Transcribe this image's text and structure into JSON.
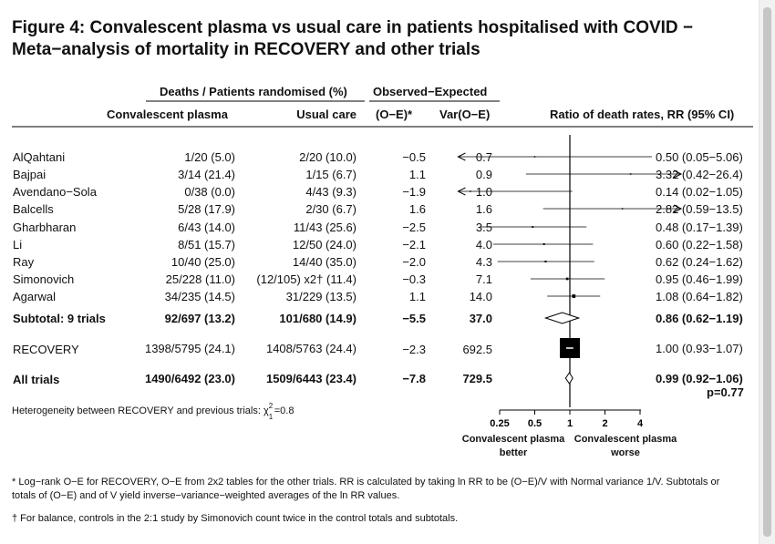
{
  "title_line1": "Figure 4: Convalescent plasma vs usual care in patients hospitalised with COVID −",
  "title_line2": "Meta−analysis of mortality in RECOVERY and other trials",
  "headers": {
    "deaths_group": "Deaths / Patients randomised (%)",
    "oe_group": "Observed−Expected",
    "cp": "Convalescent plasma",
    "uc": "Usual care",
    "oe": "(O−E)*",
    "var": "Var(O−E)",
    "rr": "Ratio of death rates, RR (95% CI)"
  },
  "rows": [
    {
      "name": "AlQahtani",
      "cp": "1/20 (5.0)",
      "uc": "2/20 (10.0)",
      "oe": "−0.5",
      "var": "0.7",
      "rr_text": "0.50 (0.05−5.06)"
    },
    {
      "name": "Bajpai",
      "cp": "3/14 (21.4)",
      "uc": "1/15 (6.7)",
      "oe": "1.1",
      "var": "0.9",
      "rr_text": "3.32 (0.42−26.4)"
    },
    {
      "name": "Avendano−Sola",
      "cp": "0/38 (0.0)",
      "uc": "4/43 (9.3)",
      "oe": "−1.9",
      "var": "1.0",
      "rr_text": "0.14 (0.02−1.05)"
    },
    {
      "name": "Balcells",
      "cp": "5/28 (17.9)",
      "uc": "2/30 (6.7)",
      "oe": "1.6",
      "var": "1.6",
      "rr_text": "2.82 (0.59−13.5)"
    },
    {
      "name": "Gharbharan",
      "cp": "6/43 (14.0)",
      "uc": "11/43 (25.6)",
      "oe": "−2.5",
      "var": "3.5",
      "rr_text": "0.48 (0.17−1.39)"
    },
    {
      "name": "Li",
      "cp": "8/51 (15.7)",
      "uc": "12/50 (24.0)",
      "oe": "−2.1",
      "var": "4.0",
      "rr_text": "0.60 (0.22−1.58)"
    },
    {
      "name": "Ray",
      "cp": "10/40 (25.0)",
      "uc": "14/40 (35.0)",
      "oe": "−2.0",
      "var": "4.3",
      "rr_text": "0.62 (0.24−1.62)"
    },
    {
      "name": "Simonovich",
      "cp": "25/228 (11.0)",
      "uc": "(12/105) x2† (11.4)",
      "oe": "−0.3",
      "var": "7.1",
      "rr_text": "0.95 (0.46−1.99)"
    },
    {
      "name": "Agarwal",
      "cp": "34/235 (14.5)",
      "uc": "31/229 (13.5)",
      "oe": "1.1",
      "var": "14.0",
      "rr_text": "1.08 (0.64−1.82)"
    }
  ],
  "subtotal": {
    "name": "Subtotal: 9 trials",
    "cp": "92/697 (13.2)",
    "uc": "101/680 (14.9)",
    "oe": "−5.5",
    "var": "37.0",
    "rr_text": "0.86 (0.62−1.19)"
  },
  "recovery": {
    "name": "RECOVERY",
    "cp": "1398/5795 (24.1)",
    "uc": "1408/5763 (24.4)",
    "oe": "−2.3",
    "var": "692.5",
    "rr_text": "1.00 (0.93−1.07)"
  },
  "all": {
    "name": "All trials",
    "cp": "1490/6492 (23.0)",
    "uc": "1509/6443 (23.4)",
    "oe": "−7.8",
    "var": "729.5",
    "rr_text": "0.99 (0.92−1.06)",
    "p": "p=0.77"
  },
  "heterogeneity_prefix": "Heterogeneity between RECOVERY and previous trials: χ",
  "heterogeneity_sup": "2",
  "heterogeneity_sub": "1",
  "heterogeneity_value": "=0.8",
  "axis": {
    "left_label_l1": "Convalescent plasma",
    "left_label_l2": "better",
    "right_label_l1": "Convalescent plasma",
    "right_label_l2": "worse"
  },
  "footnote1": "* Log−rank O−E for RECOVERY, O−E from 2x2 tables for the other trials. RR is calculated by taking ln RR to be (O−E)/V with Normal variance 1/V. Subtotals or totals of (O−E) and of V yield inverse−variance−weighted averages of the ln RR values.",
  "footnote2": "† For balance, controls in the 2:1 study by Simonovich count twice in the control totals and subtotals.",
  "chart_data": {
    "type": "forest",
    "x_scale": "log",
    "xlim": [
      0.25,
      4
    ],
    "xticks": [
      0.25,
      0.5,
      1,
      2,
      4
    ],
    "xtick_labels": [
      "0.25",
      "0.5",
      "1",
      "2",
      "4"
    ],
    "reference_line": 1,
    "studies": [
      {
        "name": "AlQahtani",
        "rr": 0.5,
        "lo": 0.05,
        "hi": 5.06,
        "var": 0.7
      },
      {
        "name": "Bajpai",
        "rr": 3.32,
        "lo": 0.42,
        "hi": 26.4,
        "var": 0.9
      },
      {
        "name": "Avendano−Sola",
        "rr": 0.14,
        "lo": 0.02,
        "hi": 1.05,
        "var": 1.0
      },
      {
        "name": "Balcells",
        "rr": 2.82,
        "lo": 0.59,
        "hi": 13.5,
        "var": 1.6
      },
      {
        "name": "Gharbharan",
        "rr": 0.48,
        "lo": 0.17,
        "hi": 1.39,
        "var": 3.5
      },
      {
        "name": "Li",
        "rr": 0.6,
        "lo": 0.22,
        "hi": 1.58,
        "var": 4.0
      },
      {
        "name": "Ray",
        "rr": 0.62,
        "lo": 0.24,
        "hi": 1.62,
        "var": 4.3
      },
      {
        "name": "Simonovich",
        "rr": 0.95,
        "lo": 0.46,
        "hi": 1.99,
        "var": 7.1
      },
      {
        "name": "Agarwal",
        "rr": 1.08,
        "lo": 0.64,
        "hi": 1.82,
        "var": 14.0
      }
    ],
    "subtotal": {
      "name": "Subtotal: 9 trials",
      "rr": 0.86,
      "lo": 0.62,
      "hi": 1.19
    },
    "recovery": {
      "name": "RECOVERY",
      "rr": 1.0,
      "lo": 0.93,
      "hi": 1.07,
      "var": 692.5
    },
    "all": {
      "name": "All trials",
      "rr": 0.99,
      "lo": 0.92,
      "hi": 1.06
    }
  }
}
